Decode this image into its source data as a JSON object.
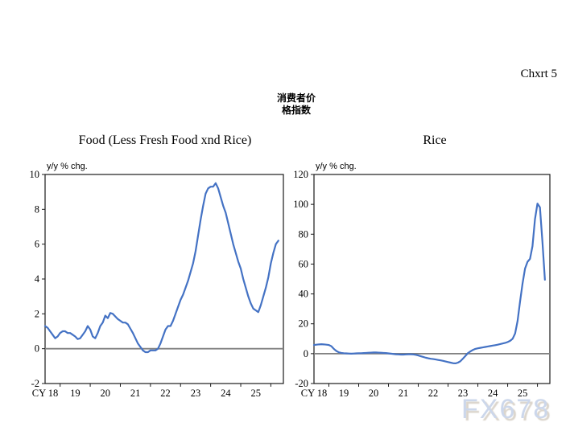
{
  "page": {
    "chart_number": "Chxrt 5",
    "title_line1": "消费者价",
    "title_line2": "格指数",
    "watermark": "FX678"
  },
  "chart_data": [
    {
      "type": "line",
      "title": "Food (Less Fresh Food xnd Rice)",
      "axis_note": "y/y % chg.",
      "ylim": [
        -2,
        10
      ],
      "yticks": [
        -2,
        0,
        2,
        4,
        6,
        8,
        10
      ],
      "x_tick_labels": [
        "CY 18",
        "19",
        "20",
        "21",
        "22",
        "23",
        "24",
        "25"
      ],
      "x_start": "2018-01",
      "frequency": "monthly",
      "legend": "none",
      "grid": false,
      "zero_line": true,
      "zero_line_color": "#808080",
      "line_color": "#4472C4",
      "values": [
        1.3,
        1.2,
        1.0,
        0.8,
        0.6,
        0.7,
        0.9,
        1.0,
        1.0,
        0.9,
        0.9,
        0.8,
        0.7,
        0.55,
        0.6,
        0.8,
        1.0,
        1.3,
        1.1,
        0.7,
        0.6,
        0.9,
        1.3,
        1.5,
        1.9,
        1.75,
        2.05,
        2.0,
        1.85,
        1.7,
        1.6,
        1.5,
        1.5,
        1.4,
        1.15,
        0.9,
        0.6,
        0.3,
        0.1,
        -0.1,
        -0.2,
        -0.2,
        -0.1,
        -0.1,
        -0.1,
        0.0,
        0.3,
        0.7,
        1.1,
        1.3,
        1.3,
        1.6,
        2.0,
        2.4,
        2.8,
        3.1,
        3.5,
        3.9,
        4.4,
        4.9,
        5.6,
        6.5,
        7.4,
        8.2,
        8.9,
        9.2,
        9.3,
        9.3,
        9.5,
        9.2,
        8.7,
        8.2,
        7.8,
        7.2,
        6.6,
        6.0,
        5.5,
        5.0,
        4.6,
        4.0,
        3.5,
        3.0,
        2.6,
        2.3,
        2.2,
        2.1,
        2.5,
        3.0,
        3.5,
        4.1,
        4.9,
        5.5,
        6.0,
        6.2
      ]
    },
    {
      "type": "line",
      "title": "Rice",
      "axis_note": "y/y % chg.",
      "ylim": [
        -20,
        120
      ],
      "yticks": [
        -20,
        0,
        20,
        40,
        60,
        80,
        100,
        120
      ],
      "x_tick_labels": [
        "CY 18",
        "19",
        "20",
        "21",
        "22",
        "23",
        "24",
        "25"
      ],
      "x_start": "2018-01",
      "frequency": "monthly",
      "legend": "none",
      "grid": false,
      "zero_line": true,
      "zero_line_color": "#808080",
      "line_color": "#4472C4",
      "values": [
        5.8,
        6.0,
        6.2,
        6.3,
        6.2,
        6.0,
        5.8,
        5.0,
        3.2,
        1.8,
        0.9,
        0.5,
        0.3,
        0.2,
        0.1,
        0.0,
        0.1,
        0.2,
        0.3,
        0.3,
        0.4,
        0.5,
        0.6,
        0.7,
        0.8,
        0.8,
        0.7,
        0.6,
        0.5,
        0.4,
        0.2,
        0.0,
        -0.2,
        -0.4,
        -0.5,
        -0.6,
        -0.6,
        -0.5,
        -0.4,
        -0.4,
        -0.5,
        -0.8,
        -1.2,
        -1.7,
        -2.2,
        -2.7,
        -3.1,
        -3.4,
        -3.6,
        -3.9,
        -4.2,
        -4.5,
        -4.8,
        -5.2,
        -5.6,
        -6.0,
        -6.4,
        -6.5,
        -6.0,
        -5.0,
        -3.3,
        -1.5,
        0.4,
        1.5,
        2.5,
        3.2,
        3.6,
        3.9,
        4.2,
        4.5,
        4.8,
        5.1,
        5.4,
        5.7,
        6.0,
        6.4,
        6.8,
        7.2,
        7.8,
        8.6,
        10.0,
        13.5,
        22.0,
        35.0,
        47.0,
        57.0,
        61.5,
        63.5,
        72.0,
        90.0,
        100.5,
        98.0,
        75.0,
        49.5
      ]
    }
  ]
}
